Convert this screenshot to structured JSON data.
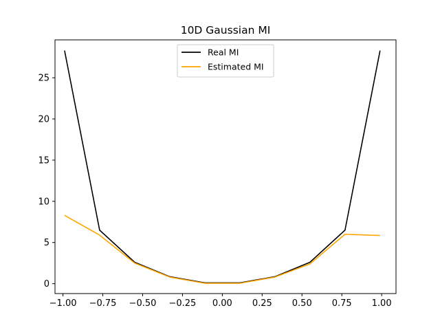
{
  "chart_data": {
    "type": "line",
    "title": "10D Gaussian MI",
    "xlabel": "",
    "ylabel": "",
    "xlim": [
      -1.05,
      1.09
    ],
    "ylim": [
      -1.2,
      29.6
    ],
    "x_ticks": [
      -1.0,
      -0.75,
      -0.5,
      -0.25,
      0.0,
      0.25,
      0.5,
      0.75,
      1.0
    ],
    "x_tick_labels": [
      "−1.00",
      "−0.75",
      "−0.50",
      "−0.25",
      "0.00",
      "0.25",
      "0.50",
      "0.75",
      "1.00"
    ],
    "y_ticks": [
      0,
      5,
      10,
      15,
      20,
      25
    ],
    "y_tick_labels": [
      "0",
      "5",
      "10",
      "15",
      "20",
      "25"
    ],
    "grid": false,
    "legend_position": "top-center",
    "x": [
      -0.99,
      -0.77,
      -0.55,
      -0.33,
      -0.11,
      0.11,
      0.33,
      0.55,
      0.77,
      0.99
    ],
    "series": [
      {
        "name": "Real MI",
        "color": "#000000",
        "values": [
          28.3,
          6.5,
          2.6,
          0.85,
          0.1,
          0.1,
          0.85,
          2.6,
          6.5,
          28.3
        ]
      },
      {
        "name": "Estimated MI",
        "color": "#ffa500",
        "values": [
          8.3,
          5.9,
          2.5,
          0.8,
          0.05,
          0.05,
          0.8,
          2.4,
          6.0,
          5.85
        ]
      }
    ]
  }
}
